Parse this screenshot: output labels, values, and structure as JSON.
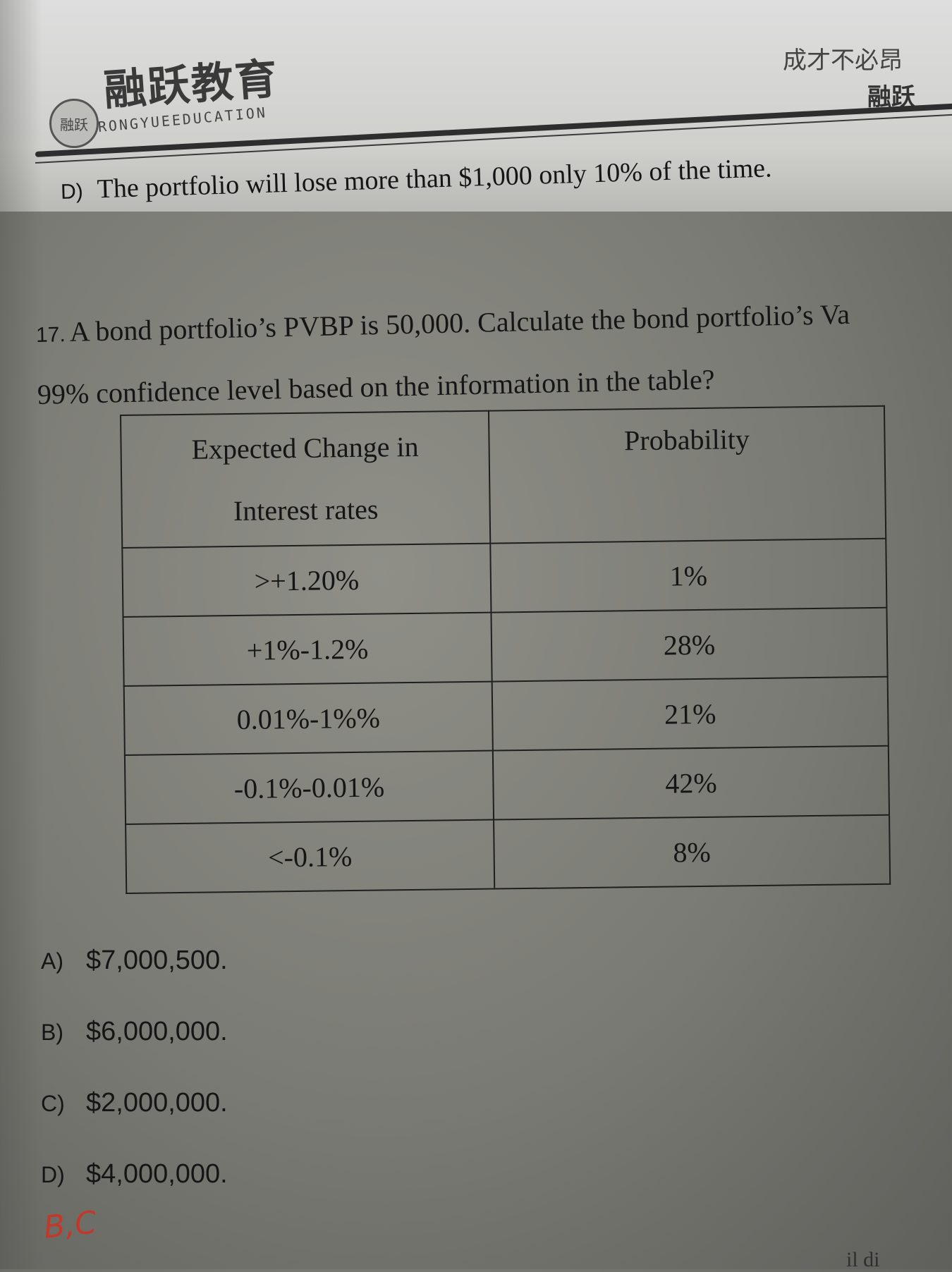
{
  "header": {
    "logo_cn": "融跃教育",
    "logo_en": "RONGYUEEDUCATION",
    "seal_text": "融跃",
    "slogan_line1": "成才不必昂",
    "slogan_line2": "融跃"
  },
  "previous_option": {
    "label": "D)",
    "text": "The portfolio will lose more than $1,000 only 10% of the time."
  },
  "question": {
    "number": "17.",
    "line1": "A bond portfolio’s PVBP is 50,000. Calculate the bond portfolio’s Va",
    "line2": "99% confidence level based on the information in the table?"
  },
  "table": {
    "headers": [
      "Expected Change in",
      "Interest rates",
      "Probability"
    ],
    "rows": [
      {
        "change": ">+1.20%",
        "probability": "1%"
      },
      {
        "change": "+1%-1.2%",
        "probability": "28%"
      },
      {
        "change": "0.01%-1%%",
        "probability": "21%"
      },
      {
        "change": "-0.1%-0.01%",
        "probability": "42%"
      },
      {
        "change": "<-0.1%",
        "probability": "8%"
      }
    ]
  },
  "answers": [
    {
      "label": "A)",
      "text": "$7,000,500."
    },
    {
      "label": "B)",
      "text": "$6,000,000."
    },
    {
      "label": "C)",
      "text": "$2,000,000."
    },
    {
      "label": "D)",
      "text": "$4,000,000."
    }
  ],
  "handwritten_note": "B,C",
  "partial_text": "il di"
}
